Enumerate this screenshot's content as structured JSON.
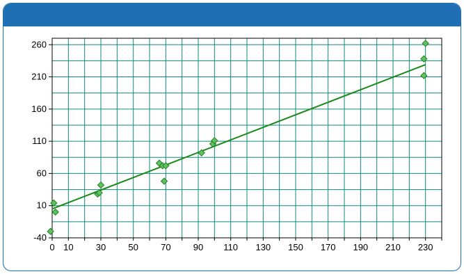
{
  "colors": {
    "header": "#1f6fb5",
    "border": "#1f6fb5",
    "grid": "#0f8a7a",
    "trend_line": "#1a8a1a",
    "marker_fill": "#5cc45c",
    "marker_stroke": "#2a7a2a"
  },
  "chart_data": {
    "type": "scatter",
    "title": "",
    "xlabel": "",
    "ylabel": "",
    "xlim": [
      0,
      240
    ],
    "ylim": [
      -40,
      270
    ],
    "x_ticks": [
      0,
      10,
      30,
      50,
      70,
      90,
      110,
      130,
      150,
      170,
      190,
      210,
      230
    ],
    "y_ticks": [
      -40,
      10,
      60,
      110,
      160,
      210,
      260
    ],
    "x_grid_step": 10,
    "y_grid_step": 25,
    "grid": true,
    "legend": "none",
    "series": [
      {
        "points": [
          [
            -1,
            -30
          ],
          [
            1,
            14
          ],
          [
            2,
            0
          ],
          [
            28,
            28
          ],
          [
            29,
            30
          ],
          [
            30,
            42
          ],
          [
            66,
            76
          ],
          [
            68,
            72
          ],
          [
            69,
            48
          ],
          [
            70,
            72
          ],
          [
            92,
            92
          ],
          [
            99,
            106
          ],
          [
            100,
            111
          ],
          [
            230,
            262
          ],
          [
            229,
            238
          ],
          [
            229,
            212
          ]
        ],
        "marker": "diamond"
      }
    ],
    "trend_line": {
      "from": [
        0,
        5
      ],
      "to": [
        230,
        229
      ]
    }
  }
}
